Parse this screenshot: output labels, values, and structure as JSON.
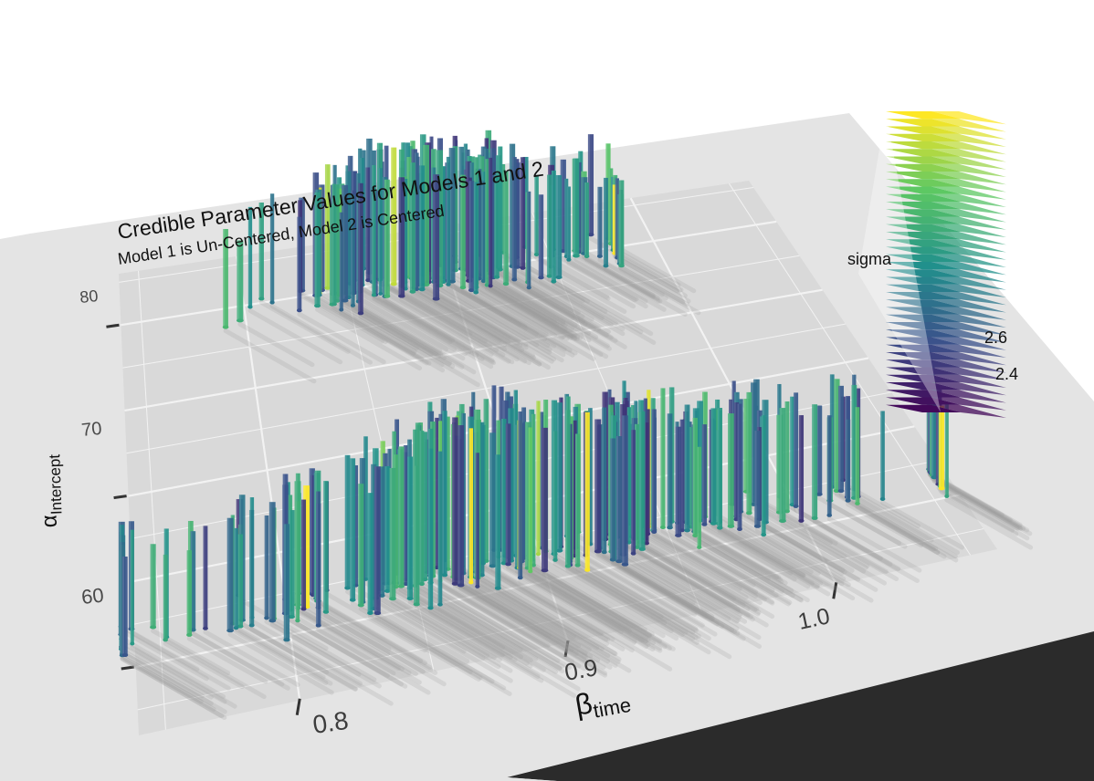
{
  "chart_data": {
    "type": "scatter",
    "rendering": "3d-rayshader-columns",
    "title": "Credible Parameter Values for Models 1 and 2",
    "subtitle": "Model 1 is Un-Centered, Model 2 is Centered",
    "xlabel_main": "β",
    "xlabel_sub": "time",
    "ylabel_main": "α",
    "ylabel_sub": "Intercept",
    "x_ticks": [
      "0.8",
      "0.9",
      "1.0"
    ],
    "y_ticks": [
      "60",
      "70",
      "80"
    ],
    "xlim": [
      0.74,
      1.06
    ],
    "ylim": [
      56,
      83
    ],
    "legend_title": "sigma",
    "legend_ticks": [
      "2.4",
      "2.6"
    ],
    "legend_placement": "right",
    "color_scale": "viridis",
    "colors": {
      "panel": "#e4e4e4",
      "plot_area": "#d9d9d9",
      "base_edge": "#2b2b2b",
      "grid": "#f2f2f2",
      "shadow": "#9a9a9a",
      "viridis": [
        "#440154",
        "#3b528b",
        "#21908c",
        "#5dc863",
        "#fde725"
      ]
    },
    "series": [
      {
        "name": "Model 1",
        "y_center": 79.8,
        "x_range": [
          0.79,
          0.98
        ]
      },
      {
        "name": "Model 2",
        "y_center": 61.5,
        "x_range": [
          0.735,
          1.055
        ]
      }
    ]
  }
}
